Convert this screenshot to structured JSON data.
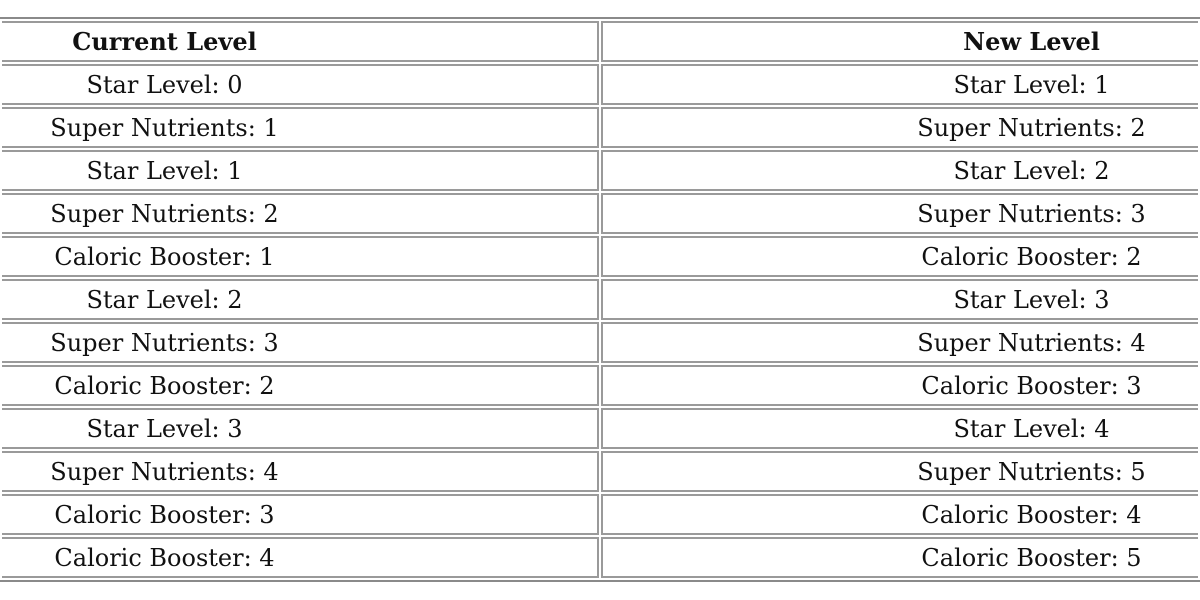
{
  "table": {
    "headers": [
      "Current Level",
      "New Level"
    ],
    "rows": [
      [
        "Star Level: 0",
        "Star Level: 1"
      ],
      [
        "Super Nutrients: 1",
        "Super Nutrients: 2"
      ],
      [
        "Star Level: 1",
        "Star Level: 2"
      ],
      [
        "Super Nutrients: 2",
        "Super Nutrients: 3"
      ],
      [
        "Caloric Booster: 1",
        "Caloric Booster: 2"
      ],
      [
        "Star Level: 2",
        "Star Level: 3"
      ],
      [
        "Super Nutrients: 3",
        "Super Nutrients: 4"
      ],
      [
        "Caloric Booster: 2",
        "Caloric Booster: 3"
      ],
      [
        "Star Level: 3",
        "Star Level: 4"
      ],
      [
        "Super Nutrients: 4",
        "Super Nutrients: 5"
      ],
      [
        "Caloric Booster: 3",
        "Caloric Booster: 4"
      ],
      [
        "Caloric Booster: 4",
        "Caloric Booster: 5"
      ]
    ]
  }
}
